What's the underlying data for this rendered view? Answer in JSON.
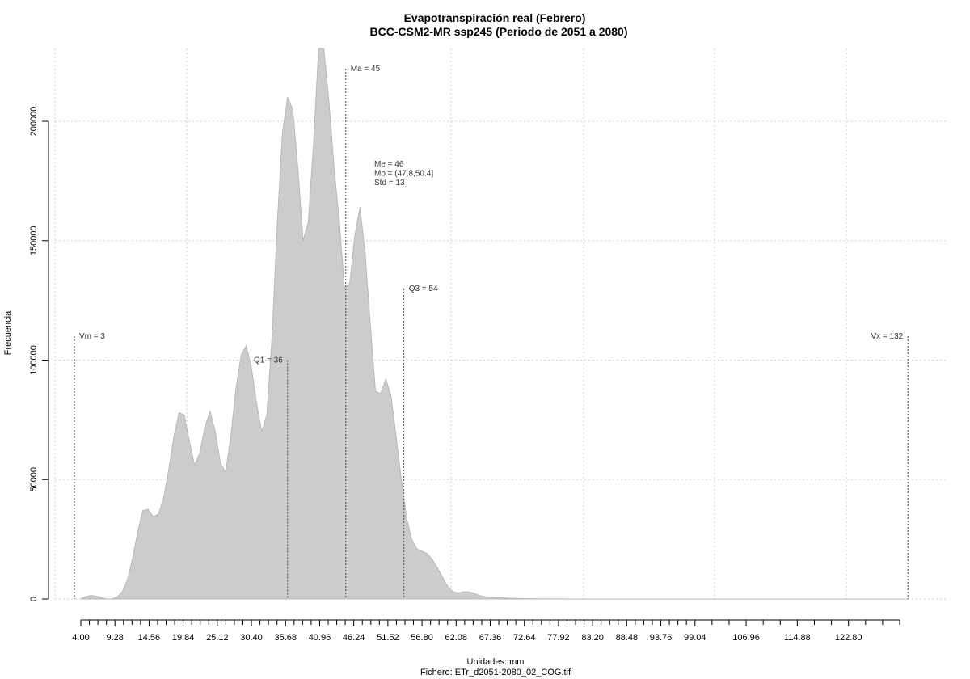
{
  "chart_data": {
    "type": "area",
    "title": "Evapotranspiración real (Febrero)",
    "subtitle": "BCC-CSM2-MR ssp245 (Periodo de 2051 a 2080)",
    "xlabel": "Unidades: mm",
    "footer": "Fichero: ETr_d2051-2080_02_COG.tif",
    "ylabel": "Frecuencia",
    "xlim": [
      0.6,
      137.6
    ],
    "ylim": [
      -8000,
      230000
    ],
    "grid": true,
    "fill_color": "#cccccc",
    "y_ticks": [
      0,
      50000,
      100000,
      150000,
      200000
    ],
    "y_tick_labels": [
      "0",
      "50000",
      "100000",
      "150000",
      "200000"
    ],
    "x_ticks": [
      4.0,
      9.28,
      14.56,
      19.84,
      25.12,
      30.4,
      35.68,
      40.96,
      46.24,
      51.52,
      56.8,
      62.08,
      67.36,
      72.64,
      77.92,
      83.2,
      88.48,
      93.76,
      99.04,
      106.96,
      114.88,
      122.8
    ],
    "x_tick_labels": [
      "4.00",
      "9.28",
      "14.56",
      "19.84",
      "25.12",
      "30.40",
      "35.68",
      "40.96",
      "46.24",
      "51.52",
      "56.80",
      "62.08",
      "67.36",
      "72.64",
      "77.92",
      "83.20",
      "88.48",
      "93.76",
      "99.04",
      "106.96",
      "114.88",
      "122.80"
    ],
    "minor_x_ticks": [
      5.32,
      6.64,
      7.96,
      10.6,
      11.92,
      13.24,
      15.88,
      17.2,
      18.52,
      21.16,
      22.48,
      23.8,
      26.44,
      27.76,
      29.08,
      31.72,
      33.04,
      34.36,
      37.0,
      38.32,
      39.64,
      42.28,
      43.6,
      44.92,
      47.56,
      48.88,
      50.2,
      52.84,
      54.16,
      55.48,
      58.12,
      59.44,
      60.76,
      63.4,
      64.72,
      66.04,
      68.68,
      70.0,
      71.32,
      73.96,
      75.28,
      76.6,
      79.24,
      80.56,
      81.88,
      84.52,
      85.84,
      87.16,
      89.8,
      91.12,
      92.44,
      95.08,
      96.4,
      97.72,
      101.68,
      104.32,
      109.6,
      112.24,
      117.52,
      120.16,
      125.44,
      128.08,
      130.72
    ],
    "x": [
      4.0,
      4.8,
      5.6,
      6.4,
      7.2,
      8.0,
      8.8,
      9.6,
      10.4,
      11.2,
      12.0,
      12.8,
      13.6,
      14.4,
      15.2,
      16.0,
      16.8,
      17.6,
      18.4,
      19.2,
      20.0,
      20.8,
      21.6,
      22.4,
      23.2,
      24.0,
      24.8,
      25.6,
      26.4,
      27.2,
      28.0,
      28.8,
      29.6,
      30.4,
      31.2,
      32.0,
      32.8,
      33.6,
      34.4,
      35.2,
      36.0,
      36.8,
      37.6,
      38.4,
      39.2,
      40.0,
      40.8,
      41.6,
      42.4,
      43.2,
      44.0,
      44.8,
      45.6,
      46.4,
      47.2,
      48.0,
      48.8,
      49.6,
      50.4,
      51.2,
      52.0,
      52.8,
      53.6,
      54.4,
      55.2,
      56.0,
      56.8,
      57.6,
      58.4,
      59.2,
      60.0,
      60.8,
      61.6,
      62.4,
      63.2,
      64.0,
      64.8,
      65.6,
      66.4,
      67.2,
      68.0,
      68.8,
      69.6,
      70.4,
      71.2,
      72.0,
      72.8,
      73.6,
      74.4,
      75.2,
      76.0,
      76.8,
      77.6,
      78.4,
      79.2,
      80.0,
      80.8,
      81.6,
      82.4,
      83.2,
      84.0,
      84.8,
      85.6,
      86.4,
      87.2,
      88.0,
      88.8,
      89.6,
      90.4,
      91.2,
      92.0,
      92.8,
      93.6,
      94.4,
      95.2,
      96.0,
      96.8,
      97.6,
      98.4,
      99.2,
      100.0,
      110.0,
      120.0,
      130.0,
      132.0
    ],
    "y": [
      0,
      1000,
      1500,
      1200,
      500,
      0,
      0,
      800,
      3000,
      8000,
      17000,
      28000,
      37000,
      37500,
      34500,
      35500,
      42000,
      54000,
      68000,
      78000,
      77000,
      66000,
      56000,
      61000,
      72000,
      78500,
      70000,
      57000,
      53000,
      68000,
      88000,
      102000,
      106000,
      97000,
      82000,
      70000,
      77000,
      110000,
      157000,
      195000,
      210000,
      205000,
      180000,
      150000,
      158000,
      190000,
      232000,
      232000,
      208000,
      180000,
      158000,
      130000,
      132000,
      152000,
      164000,
      145000,
      115000,
      87000,
      86000,
      92000,
      85000,
      68000,
      50000,
      34000,
      25000,
      21000,
      20000,
      19000,
      16500,
      13000,
      9000,
      5000,
      3000,
      2500,
      3000,
      3000,
      2500,
      1500,
      1000,
      800,
      600,
      500,
      400,
      300,
      250,
      200,
      150,
      120,
      100,
      80,
      60,
      50,
      40,
      30,
      20,
      15,
      10,
      8,
      5,
      3,
      2,
      1,
      0,
      0,
      0,
      0,
      0,
      0,
      0,
      0,
      0,
      0,
      0,
      0,
      0,
      0,
      0,
      0,
      0,
      0,
      0,
      0,
      0,
      0,
      0
    ],
    "markers": [
      {
        "name": "Vm",
        "x": 3,
        "top": 110000,
        "label": "Vm = 3",
        "label_side": "right"
      },
      {
        "name": "Q1",
        "x": 36,
        "top": 100000,
        "label": "Q1 = 36",
        "label_side": "left"
      },
      {
        "name": "Ma",
        "x": 45,
        "top": 222000,
        "label": "Ma = 45",
        "label_side": "right"
      },
      {
        "name": "Q3",
        "x": 54,
        "top": 130000,
        "label": "Q3 = 54",
        "label_side": "right"
      },
      {
        "name": "Vx",
        "x": 132,
        "top": 110000,
        "label": "Vx = 132",
        "label_side": "left"
      }
    ],
    "stats_text": [
      "Me = 46",
      "Mo = (47.8,50.4]",
      "Std = 13"
    ]
  }
}
